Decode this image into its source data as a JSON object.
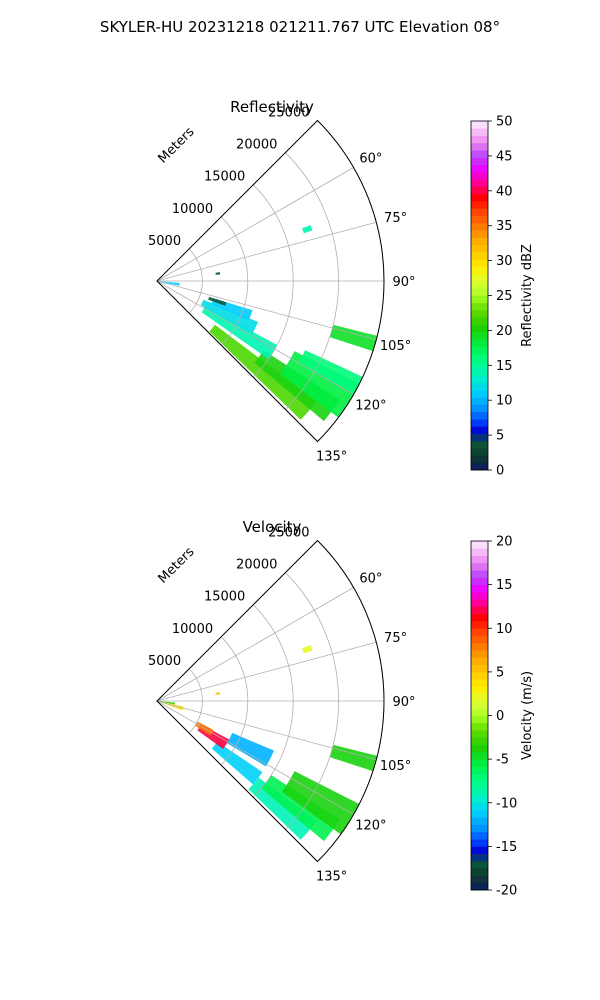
{
  "title": "SKYLER-HU  20231218  021211.767 UTC Elevation 08°",
  "panels": [
    {
      "id": "reflectivity",
      "title": "Reflectivity",
      "radial_axis_label": "Meters",
      "range_ticks": [
        "5000",
        "10000",
        "15000",
        "20000",
        "25000"
      ],
      "azimuth_ticks": [
        "60°",
        "75°",
        "90°",
        "105°",
        "120°",
        "135°"
      ],
      "colorbar_label": "Reflectivity dBZ",
      "colorbar_ticks": [
        "0",
        "5",
        "10",
        "15",
        "20",
        "25",
        "30",
        "35",
        "40",
        "45",
        "50"
      ]
    },
    {
      "id": "velocity",
      "title": "Velocity",
      "radial_axis_label": "Meters",
      "range_ticks": [
        "5000",
        "10000",
        "15000",
        "20000",
        "25000"
      ],
      "azimuth_ticks": [
        "60°",
        "75°",
        "90°",
        "105°",
        "120°",
        "135°"
      ],
      "colorbar_label": "Velocity (m/s)",
      "colorbar_ticks": [
        "-20",
        "-15",
        "-10",
        "-5",
        "0",
        "5",
        "10",
        "15",
        "20"
      ]
    }
  ],
  "chart_data": [
    {
      "type": "heatmap",
      "subtype": "polar-sector (PPI radar sweep)",
      "title": "Reflectivity",
      "radial_label": "Meters",
      "range_ticks_m": [
        5000,
        10000,
        15000,
        20000,
        25000
      ],
      "r_max_m": 25000,
      "azimuth_range_deg": [
        45,
        135
      ],
      "azimuth_ticks_deg": [
        60,
        75,
        90,
        105,
        120,
        135
      ],
      "grid": true,
      "colorbar": {
        "label": "Reflectivity dBZ",
        "min": 0,
        "max": 50,
        "ticks": [
          0,
          5,
          10,
          15,
          20,
          25,
          30,
          35,
          40,
          45,
          50
        ]
      },
      "echoes": [
        {
          "az_deg": [
            127,
            134
          ],
          "range_m": [
            8000,
            22000
          ],
          "value": 22
        },
        {
          "az_deg": [
            123,
            130
          ],
          "range_m": [
            14000,
            24000
          ],
          "value": 20
        },
        {
          "az_deg": [
            117,
            127
          ],
          "range_m": [
            17000,
            25000
          ],
          "value": 18
        },
        {
          "az_deg": [
            118,
            125
          ],
          "range_m": [
            6000,
            15000
          ],
          "value": 14
        },
        {
          "az_deg": [
            112,
            119
          ],
          "range_m": [
            5500,
            12000
          ],
          "value": 12
        },
        {
          "az_deg": [
            107,
            113
          ],
          "range_m": [
            6500,
            11000
          ],
          "value": 11
        },
        {
          "az_deg": [
            107,
            110
          ],
          "range_m": [
            6000,
            8000
          ],
          "value": 4
        },
        {
          "az_deg": [
            115,
            120
          ],
          "range_m": [
            18000,
            26000
          ],
          "value": 16
        },
        {
          "az_deg": [
            104,
            108
          ],
          "range_m": [
            20000,
            25000
          ],
          "value": 19
        },
        {
          "az_deg": [
            95,
            102
          ],
          "range_m": [
            0,
            2500
          ],
          "value": 11
        },
        {
          "az_deg": [
            82,
            84
          ],
          "range_m": [
            6500,
            7000
          ],
          "value": 4
        },
        {
          "az_deg": [
            70,
            72
          ],
          "range_m": [
            17000,
            18000
          ],
          "value": 14
        }
      ]
    },
    {
      "type": "heatmap",
      "subtype": "polar-sector (PPI radar sweep)",
      "title": "Velocity",
      "radial_label": "Meters",
      "range_ticks_m": [
        5000,
        10000,
        15000,
        20000,
        25000
      ],
      "r_max_m": 25000,
      "azimuth_range_deg": [
        45,
        135
      ],
      "azimuth_ticks_deg": [
        60,
        75,
        90,
        105,
        120,
        135
      ],
      "grid": true,
      "colorbar": {
        "label": "Velocity (m/s)",
        "min": -20,
        "max": 20,
        "ticks": [
          -20,
          -15,
          -10,
          -5,
          0,
          5,
          10,
          15,
          20
        ]
      },
      "echoes": [
        {
          "az_deg": [
            127,
            134
          ],
          "range_m": [
            14000,
            22000
          ],
          "value": -9
        },
        {
          "az_deg": [
            123,
            130
          ],
          "range_m": [
            15000,
            24000
          ],
          "value": -6
        },
        {
          "az_deg": [
            117,
            126
          ],
          "range_m": [
            17000,
            25000
          ],
          "value": -4
        },
        {
          "az_deg": [
            124,
            131
          ],
          "range_m": [
            8000,
            14000
          ],
          "value": -11
        },
        {
          "az_deg": [
            113,
            121
          ],
          "range_m": [
            9000,
            14000
          ],
          "value": -12
        },
        {
          "az_deg": [
            118,
            126
          ],
          "range_m": [
            5500,
            9000
          ],
          "value": 12
        },
        {
          "az_deg": [
            117,
            123
          ],
          "range_m": [
            5000,
            7000
          ],
          "value": 8
        },
        {
          "az_deg": [
            102,
            110
          ],
          "range_m": [
            0,
            3000
          ],
          "value": 4
        },
        {
          "az_deg": [
            104,
            108
          ],
          "range_m": [
            20000,
            25000
          ],
          "value": -4
        },
        {
          "az_deg": [
            95,
            101
          ],
          "range_m": [
            0,
            2000
          ],
          "value": -3
        },
        {
          "az_deg": [
            70,
            72
          ],
          "range_m": [
            17000,
            18000
          ],
          "value": 2
        },
        {
          "az_deg": [
            82,
            84
          ],
          "range_m": [
            6500,
            7000
          ],
          "value": 5
        }
      ]
    }
  ]
}
